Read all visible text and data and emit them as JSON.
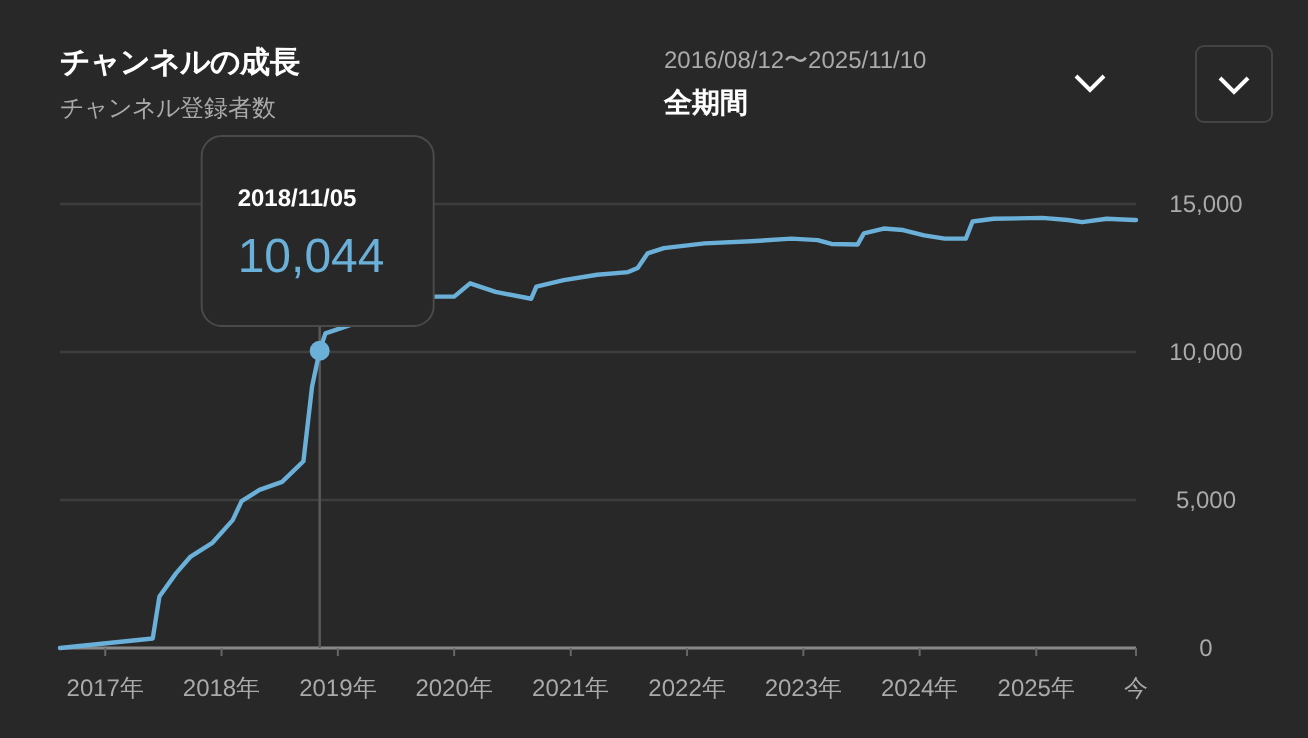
{
  "chart_data": {
    "type": "line",
    "title": "チャンネルの成長",
    "subtitle": "チャンネル登録者数",
    "annotations": [
      "2016/08/12〜2025/11/10",
      "全期間",
      "2018/11/05",
      "10,044"
    ],
    "x": [
      "2016-08-12",
      "2017-05-30",
      "2017-06-20",
      "2017-08-11",
      "2017-09-26",
      "2017-12-02",
      "2018-02-05",
      "2018-03-05",
      "2018-04-30",
      "2018-07-10",
      "2018-09-15",
      "2018-10-12",
      "2018-11-05",
      "2018-11-23",
      "2019-11-01",
      "2020-01-01",
      "2020-02-20",
      "2020-05-10",
      "2020-08-30",
      "2020-09-15",
      "2020-12-10",
      "2021-03-25",
      "2021-06-30",
      "2021-07-30",
      "2021-08-30",
      "2021-10-20",
      "2022-02-25",
      "2022-07-20",
      "2022-11-25",
      "2023-02-15",
      "2023-03-30",
      "2023-06-20",
      "2023-07-10",
      "2023-09-10",
      "2023-11-10",
      "2024-01-15",
      "2024-03-20",
      "2024-05-25",
      "2024-06-15",
      "2024-08-20",
      "2025-01-20",
      "2025-04-10",
      "2025-05-25",
      "2025-08-10",
      "2025-11-05",
      "2025-11-10"
    ],
    "series": [
      {
        "color": "#6ab0d8",
        "values": [
          0,
          320,
          1740,
          2520,
          3090,
          3540,
          4320,
          4960,
          5340,
          5610,
          6310,
          8830,
          10044,
          10630,
          11870,
          11870,
          12320,
          12030,
          11800,
          12210,
          12430,
          12610,
          12700,
          12840,
          13330,
          13510,
          13670,
          13740,
          13830,
          13780,
          13650,
          13630,
          14010,
          14170,
          14120,
          13940,
          13830,
          13830,
          14410,
          14500,
          14530,
          14460,
          14390,
          14500,
          14460,
          14460
        ]
      }
    ],
    "xlim": [
      "2016-08-12",
      "2025-11-10"
    ],
    "xticks": [
      {
        "value": "2017-01-01",
        "label": "2017年"
      },
      {
        "value": "2018-01-01",
        "label": "2018年"
      },
      {
        "value": "2019-01-01",
        "label": "2019年"
      },
      {
        "value": "2020-01-01",
        "label": "2020年"
      },
      {
        "value": "2021-01-01",
        "label": "2021年"
      },
      {
        "value": "2022-01-01",
        "label": "2022年"
      },
      {
        "value": "2023-01-01",
        "label": "2023年"
      },
      {
        "value": "2024-01-01",
        "label": "2024年"
      },
      {
        "value": "2025-01-01",
        "label": "2025年"
      },
      {
        "value": "2025-11-10",
        "label": "今"
      }
    ],
    "ylim": [
      0,
      15000
    ],
    "yticks": [
      {
        "value": 0,
        "label": "0"
      },
      {
        "value": 5000,
        "label": "5,000"
      },
      {
        "value": 10000,
        "label": "10,000"
      },
      {
        "value": 15000,
        "label": "15,000"
      }
    ],
    "ref_lines": [
      {
        "axis": "x",
        "value": "2018-11-05",
        "color": "#5a5a5a"
      }
    ],
    "grid": "y",
    "marker": "none",
    "line_style": "solid"
  }
}
